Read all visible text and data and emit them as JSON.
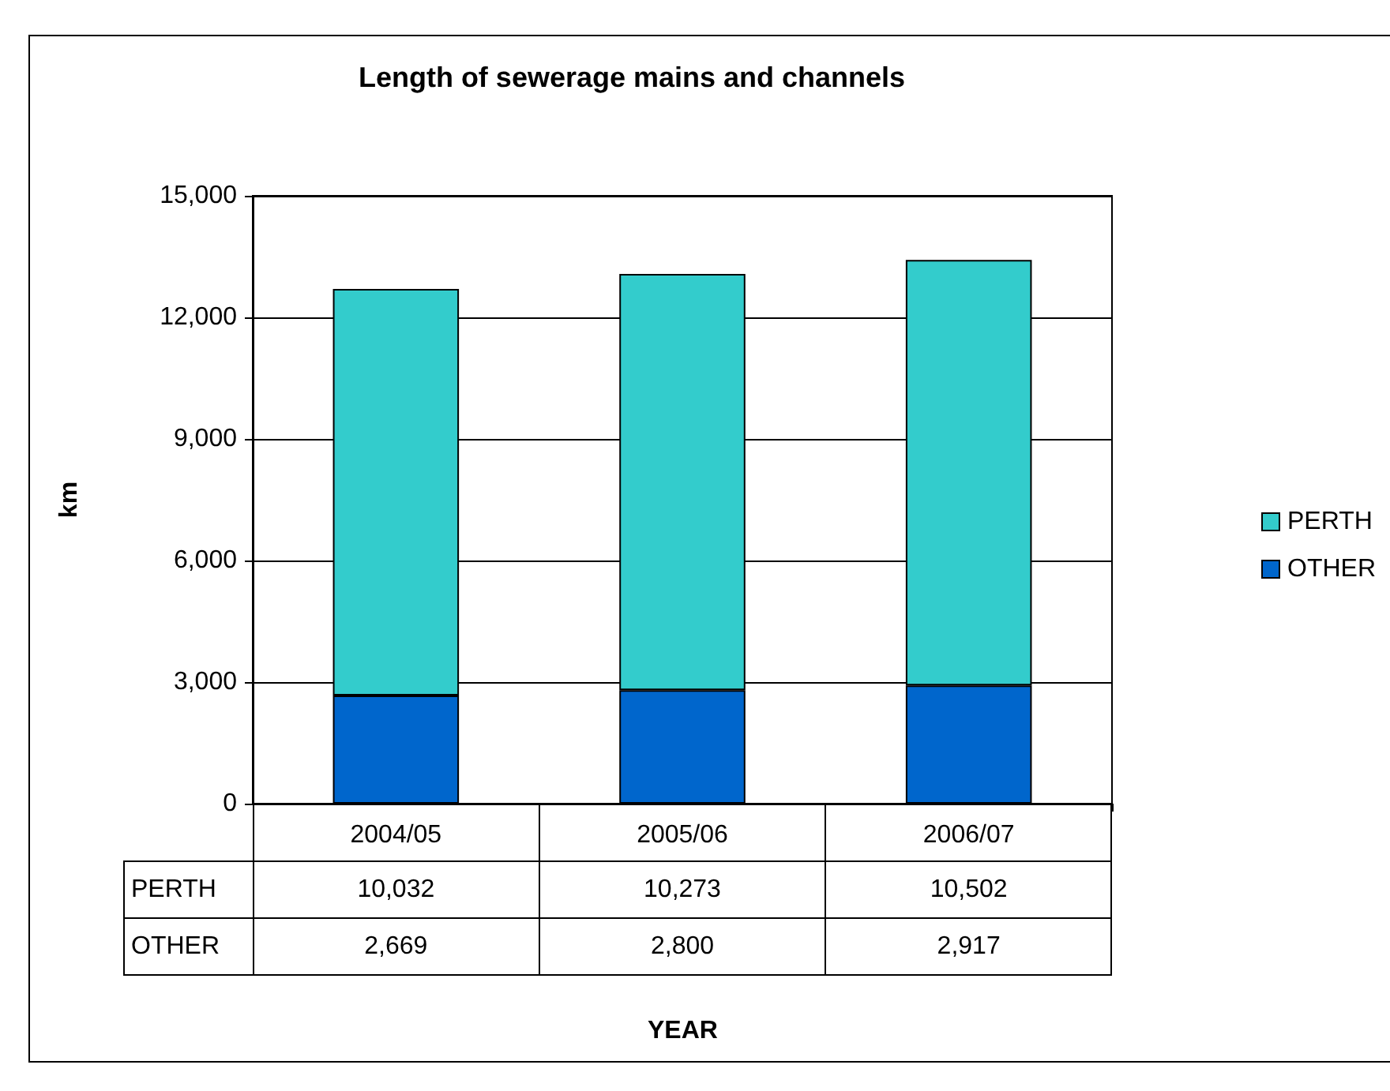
{
  "chart_data": {
    "type": "bar",
    "title": "Length of sewerage mains and channels",
    "annotations": [
      "YEAR"
    ],
    "ylabel": "km",
    "categories": [
      "2004/05",
      "2005/06",
      "2006/07"
    ],
    "series": [
      {
        "name": "OTHER",
        "color": "#0066cc",
        "values": [
          2669,
          2800,
          2917
        ],
        "value_labels": [
          "2,669",
          "2,800",
          "2,917"
        ]
      },
      {
        "name": "PERTH",
        "color": "#33cccc",
        "values": [
          10032,
          10273,
          10502
        ],
        "value_labels": [
          "10,032",
          "10,273",
          "10,502"
        ]
      }
    ],
    "stacked": true,
    "grid": "y",
    "legend": "right",
    "ylim": [
      0,
      15000
    ],
    "yticks": [
      0,
      {
        "value": 3000,
        "label": "3,000"
      },
      {
        "value": 6000,
        "label": "6,000"
      },
      {
        "value": 9000,
        "label": "9,000"
      },
      {
        "value": 12000,
        "label": "12,000"
      },
      {
        "value": 15000,
        "label": "15,000"
      }
    ]
  }
}
